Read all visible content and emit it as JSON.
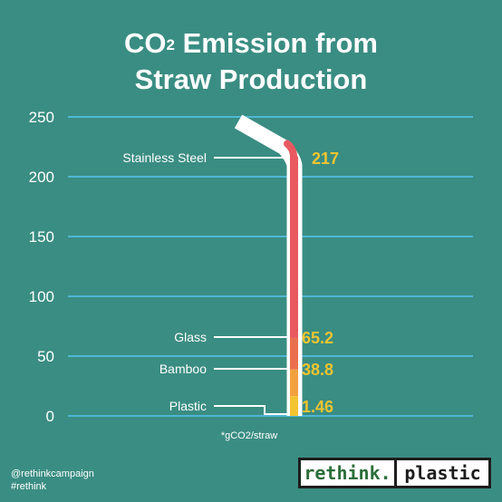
{
  "title": {
    "line1_prefix": "CO",
    "line1_sup": "2",
    "line1_suffix": " Emission from",
    "line2": "Straw Production"
  },
  "footer": {
    "handle": "@rethinkcampaign",
    "hashtag": "#rethink"
  },
  "logo": {
    "left": "rethink.",
    "right": "plastic"
  },
  "colors": {
    "background": "#3a8d82",
    "gridline": "#4fb6d6",
    "value_label": "#f3c431",
    "steel": "#e85a5f",
    "glass": "#ea6f4c",
    "bamboo": "#f2a13e",
    "plastic": "#f3c431"
  },
  "chart_data": {
    "type": "bar",
    "unit_note": "*gCO2/straw",
    "ylim": [
      0,
      250
    ],
    "yticks": [
      0,
      50,
      100,
      150,
      200,
      250
    ],
    "grid": true,
    "series": [
      {
        "values": [
          217,
          65.2,
          38.8,
          1.46
        ],
        "labels": [
          "217",
          "65.2",
          "38.8",
          "1.46"
        ]
      }
    ],
    "categories": [
      "Stainless Steel",
      "Glass",
      "Bamboo",
      "Plastic"
    ]
  }
}
